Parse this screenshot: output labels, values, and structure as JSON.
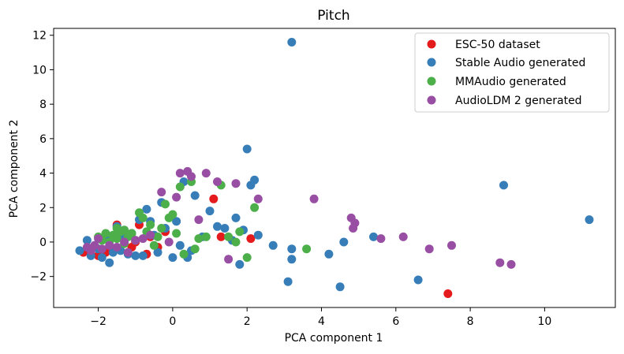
{
  "chart_data": {
    "type": "scatter",
    "title": "Pitch",
    "xlabel": "PCA component 1",
    "ylabel": "PCA component 2",
    "xlim": [
      -3.2,
      11.9
    ],
    "ylim": [
      -3.8,
      12.4
    ],
    "xticks": [
      -2,
      0,
      2,
      4,
      6,
      8,
      10
    ],
    "xtick_labels": [
      "−2",
      "0",
      "2",
      "4",
      "6",
      "8",
      "10"
    ],
    "yticks": [
      -2,
      0,
      2,
      4,
      6,
      8,
      10,
      12
    ],
    "ytick_labels": [
      "−2",
      "0",
      "2",
      "4",
      "6",
      "8",
      "10",
      "12"
    ],
    "grid": false,
    "legend_position": "top-right",
    "series": [
      {
        "name": "ESC-50 dataset",
        "color": "#e41a1c",
        "points": [
          [
            -2.4,
            -0.6
          ],
          [
            -2.2,
            -0.7
          ],
          [
            -2.0,
            -0.8
          ],
          [
            -1.8,
            -0.6
          ],
          [
            -1.6,
            -0.5
          ],
          [
            -1.5,
            1.0
          ],
          [
            -1.4,
            0.5
          ],
          [
            -1.3,
            0.2
          ],
          [
            -1.1,
            -0.3
          ],
          [
            -1.0,
            0.0
          ],
          [
            -0.9,
            1.0
          ],
          [
            -0.7,
            -0.7
          ],
          [
            -0.6,
            0.3
          ],
          [
            -0.4,
            -0.3
          ],
          [
            -0.2,
            0.6
          ],
          [
            1.1,
            2.5
          ],
          [
            1.3,
            0.3
          ],
          [
            2.1,
            0.2
          ],
          [
            7.4,
            -3.0
          ]
        ]
      },
      {
        "name": "Stable Audio generated",
        "color": "#377eb8",
        "points": [
          [
            -2.5,
            -0.5
          ],
          [
            -2.3,
            0.1
          ],
          [
            -2.2,
            -0.8
          ],
          [
            -2.0,
            -0.4
          ],
          [
            -1.9,
            -0.9
          ],
          [
            -1.8,
            0.2
          ],
          [
            -1.7,
            -1.2
          ],
          [
            -1.6,
            -0.6
          ],
          [
            -1.5,
            0.9
          ],
          [
            -1.4,
            -0.5
          ],
          [
            -1.3,
            0.3
          ],
          [
            -1.2,
            -0.7
          ],
          [
            -1.1,
            0.5
          ],
          [
            -1.0,
            -0.8
          ],
          [
            -0.9,
            1.3
          ],
          [
            -0.8,
            -0.8
          ],
          [
            -0.7,
            1.9
          ],
          [
            -0.6,
            1.2
          ],
          [
            -0.5,
            0.4
          ],
          [
            -0.4,
            -0.6
          ],
          [
            -0.3,
            2.3
          ],
          [
            -0.2,
            0.8
          ],
          [
            0.0,
            -0.9
          ],
          [
            0.1,
            1.2
          ],
          [
            0.2,
            -0.2
          ],
          [
            0.3,
            3.5
          ],
          [
            0.4,
            -0.9
          ],
          [
            0.5,
            -0.5
          ],
          [
            0.6,
            2.7
          ],
          [
            0.8,
            0.3
          ],
          [
            1.0,
            1.8
          ],
          [
            1.2,
            0.9
          ],
          [
            1.4,
            0.8
          ],
          [
            1.6,
            0.1
          ],
          [
            1.7,
            1.4
          ],
          [
            1.8,
            -1.3
          ],
          [
            1.9,
            0.7
          ],
          [
            2.0,
            5.4
          ],
          [
            2.1,
            3.3
          ],
          [
            2.2,
            3.6
          ],
          [
            2.3,
            0.4
          ],
          [
            2.7,
            -0.2
          ],
          [
            3.1,
            -2.3
          ],
          [
            3.2,
            -0.4
          ],
          [
            3.2,
            -1.0
          ],
          [
            3.2,
            11.6
          ],
          [
            4.2,
            -0.7
          ],
          [
            4.5,
            -2.6
          ],
          [
            4.6,
            0.0
          ],
          [
            5.4,
            0.3
          ],
          [
            6.6,
            -2.2
          ],
          [
            8.9,
            3.3
          ],
          [
            11.2,
            1.3
          ]
        ]
      },
      {
        "name": "MMAudio generated",
        "color": "#4daf4a",
        "points": [
          [
            -2.0,
            0.3
          ],
          [
            -1.9,
            0.1
          ],
          [
            -1.8,
            0.5
          ],
          [
            -1.7,
            0.0
          ],
          [
            -1.6,
            0.4
          ],
          [
            -1.5,
            0.8
          ],
          [
            -1.5,
            0.2
          ],
          [
            -1.4,
            0.6
          ],
          [
            -1.3,
            -0.1
          ],
          [
            -1.3,
            0.7
          ],
          [
            -1.2,
            0.3
          ],
          [
            -1.1,
            0.5
          ],
          [
            -1.0,
            0.1
          ],
          [
            -0.9,
            1.7
          ],
          [
            -0.8,
            1.4
          ],
          [
            -0.7,
            0.6
          ],
          [
            -0.6,
            1.0
          ],
          [
            -0.5,
            -0.2
          ],
          [
            -0.4,
            0.3
          ],
          [
            -0.3,
            0.8
          ],
          [
            -0.2,
            2.2
          ],
          [
            -0.1,
            1.4
          ],
          [
            0.0,
            1.6
          ],
          [
            0.1,
            0.5
          ],
          [
            0.2,
            3.2
          ],
          [
            0.3,
            -0.7
          ],
          [
            0.5,
            3.5
          ],
          [
            0.6,
            -0.4
          ],
          [
            0.7,
            0.2
          ],
          [
            0.9,
            0.3
          ],
          [
            1.3,
            3.3
          ],
          [
            1.5,
            0.3
          ],
          [
            1.7,
            0.0
          ],
          [
            1.8,
            0.6
          ],
          [
            2.0,
            -0.9
          ],
          [
            2.2,
            2.0
          ],
          [
            3.6,
            -0.4
          ]
        ]
      },
      {
        "name": "AudioLDM 2 generated",
        "color": "#984ea3",
        "points": [
          [
            -2.3,
            -0.3
          ],
          [
            -2.2,
            -0.5
          ],
          [
            -2.1,
            -0.2
          ],
          [
            -2.0,
            0.2
          ],
          [
            -1.9,
            -0.4
          ],
          [
            -1.7,
            -0.2
          ],
          [
            -1.5,
            -0.3
          ],
          [
            -1.3,
            0.0
          ],
          [
            -1.2,
            -0.6
          ],
          [
            -1.0,
            0.1
          ],
          [
            -0.8,
            0.2
          ],
          [
            -0.6,
            0.4
          ],
          [
            -0.3,
            2.9
          ],
          [
            -0.1,
            0.0
          ],
          [
            0.1,
            2.6
          ],
          [
            0.2,
            4.0
          ],
          [
            0.4,
            4.1
          ],
          [
            0.5,
            3.8
          ],
          [
            0.7,
            1.3
          ],
          [
            0.9,
            4.0
          ],
          [
            1.2,
            3.5
          ],
          [
            1.5,
            -1.0
          ],
          [
            1.7,
            3.4
          ],
          [
            2.3,
            2.5
          ],
          [
            3.8,
            2.5
          ],
          [
            4.8,
            1.4
          ],
          [
            4.9,
            1.1
          ],
          [
            4.85,
            0.8
          ],
          [
            5.6,
            0.2
          ],
          [
            6.2,
            0.3
          ],
          [
            6.9,
            -0.4
          ],
          [
            7.5,
            -0.2
          ],
          [
            8.8,
            -1.2
          ],
          [
            9.1,
            -1.3
          ]
        ]
      }
    ]
  }
}
